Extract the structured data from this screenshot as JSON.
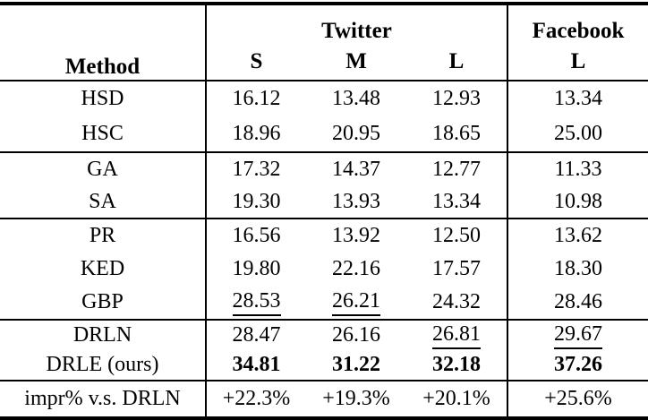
{
  "colors": {
    "background": "#ffffff",
    "text": "#000000",
    "rule": "#000000"
  },
  "table": {
    "header": {
      "method": "Method",
      "twitter_group": "Twitter",
      "facebook_group": "Facebook",
      "twitter_sub": [
        "S",
        "M",
        "L"
      ],
      "facebook_sub": [
        "L"
      ]
    },
    "rows": [
      {
        "method": "HSD",
        "values": [
          "16.12",
          "13.48",
          "12.93",
          "13.34"
        ]
      },
      {
        "method": "HSC",
        "values": [
          "18.96",
          "20.95",
          "18.65",
          "25.00"
        ]
      },
      {
        "method": "GA",
        "values": [
          "17.32",
          "14.37",
          "12.77",
          "11.33"
        ]
      },
      {
        "method": "SA",
        "values": [
          "19.30",
          "13.93",
          "13.34",
          "10.98"
        ]
      },
      {
        "method": "PR",
        "values": [
          "16.56",
          "13.92",
          "12.50",
          "13.62"
        ]
      },
      {
        "method": "KED",
        "values": [
          "19.80",
          "22.16",
          "17.57",
          "18.30"
        ]
      },
      {
        "method": "GBP",
        "values": [
          "28.53",
          "26.21",
          "24.32",
          "28.46"
        ]
      },
      {
        "method": "DRLN",
        "values": [
          "28.47",
          "26.16",
          "26.81",
          "29.67"
        ]
      },
      {
        "method": "DRLE (ours)",
        "values": [
          "34.81",
          "31.22",
          "32.18",
          "37.26"
        ]
      },
      {
        "method": "impr% v.s. DRLN",
        "values": [
          "+22.3%",
          "+19.3%",
          "+20.1%",
          "+25.6%"
        ]
      }
    ],
    "emphasis": {
      "underlined_cells": "GBP: Twitter S and M; DRLN: Twitter L and Facebook L",
      "bold_row": "DRLE (ours)"
    }
  }
}
